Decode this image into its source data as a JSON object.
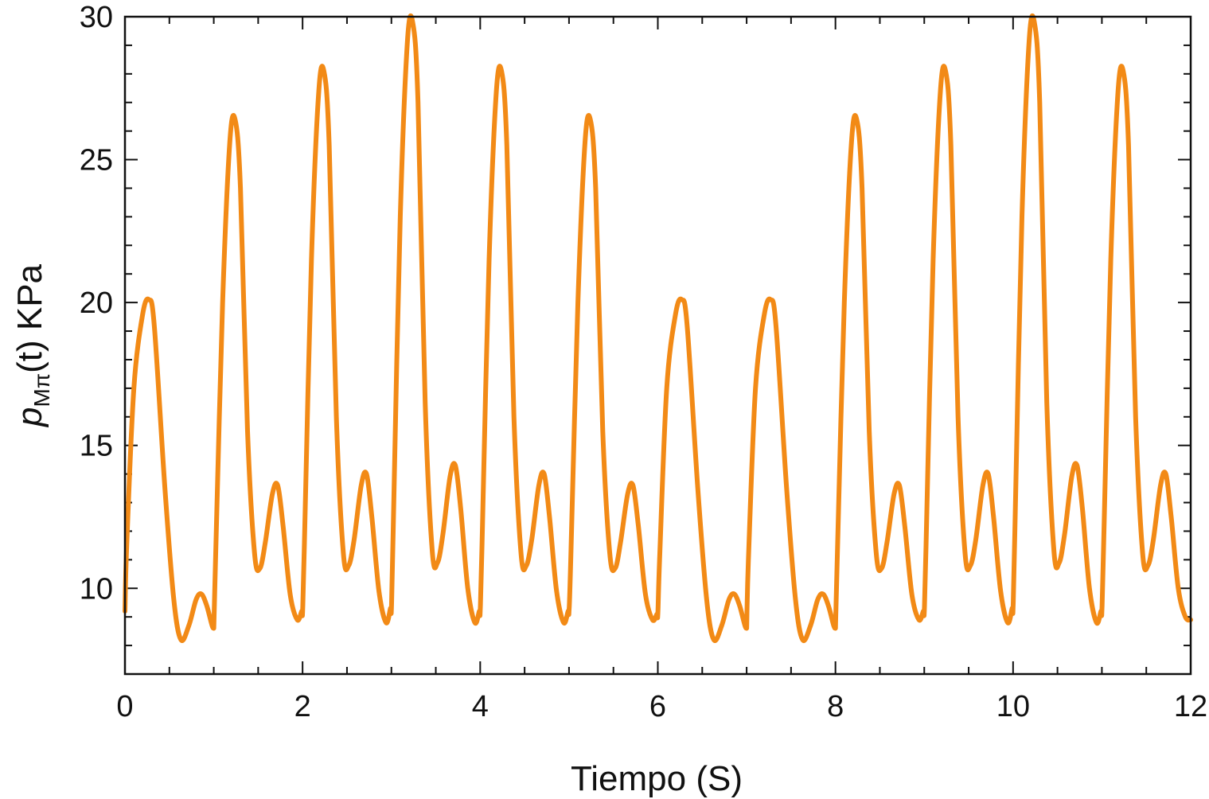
{
  "chart_data": {
    "type": "line",
    "title": "",
    "xlabel": "Tiempo  (S)",
    "ylabel": {
      "main": "p",
      "subscript": "Mπ",
      "rest": "(t)  KPa"
    },
    "xlim": [
      0,
      12
    ],
    "ylim": [
      7,
      30
    ],
    "x_ticks": [
      0,
      2,
      4,
      6,
      8,
      10,
      12
    ],
    "x_tick_labels": [
      "0",
      "2",
      "4",
      "6",
      "8",
      "10",
      "12"
    ],
    "y_ticks": [
      10,
      15,
      20,
      25,
      30
    ],
    "y_tick_labels": [
      "10",
      "15",
      "20",
      "25",
      "30"
    ],
    "grid": false,
    "legend": "none",
    "series": [
      {
        "color": "#F28A16",
        "x": [
          0,
          0.02,
          0.1,
          0.2,
          0.27,
          0.33,
          0.45,
          0.55,
          0.63,
          0.72,
          0.8,
          0.86,
          0.92,
          0.98,
          1.0,
          1.0,
          1.02,
          1.1,
          1.18,
          1.24,
          1.3,
          1.38,
          1.46,
          1.52,
          1.58,
          1.66,
          1.72,
          1.78,
          1.86,
          1.94,
          1.99,
          2.0,
          2.02,
          2.1,
          2.18,
          2.24,
          2.3,
          2.38,
          2.46,
          2.52,
          2.58,
          2.66,
          2.72,
          2.78,
          2.86,
          2.94,
          2.99,
          3.0,
          3.02,
          3.1,
          3.18,
          3.24,
          3.3,
          3.38,
          3.46,
          3.52,
          3.58,
          3.66,
          3.72,
          3.78,
          3.86,
          3.94,
          3.99,
          4.0,
          4.02,
          4.1,
          4.18,
          4.24,
          4.3,
          4.38,
          4.46,
          4.52,
          4.58,
          4.66,
          4.72,
          4.78,
          4.86,
          4.94,
          4.99,
          5.0,
          5.02,
          5.1,
          5.18,
          5.24,
          5.3,
          5.38,
          5.46,
          5.52,
          5.58,
          5.66,
          5.72,
          5.78,
          5.86,
          5.94,
          5.99,
          6.0,
          6.02,
          6.1,
          6.2,
          6.27,
          6.33,
          6.45,
          6.55,
          6.63,
          6.72,
          6.8,
          6.86,
          6.92,
          6.98,
          7.0,
          7.0,
          7.02,
          7.1,
          7.2,
          7.27,
          7.33,
          7.45,
          7.55,
          7.63,
          7.72,
          7.8,
          7.86,
          7.92,
          7.98,
          8.0,
          8.0,
          8.02,
          8.1,
          8.18,
          8.24,
          8.3,
          8.38,
          8.46,
          8.52,
          8.58,
          8.66,
          8.72,
          8.78,
          8.86,
          8.94,
          8.99,
          9.0,
          9.02,
          9.1,
          9.18,
          9.24,
          9.3,
          9.38,
          9.46,
          9.52,
          9.58,
          9.66,
          9.72,
          9.78,
          9.86,
          9.94,
          9.99,
          10.0,
          10.02,
          10.1,
          10.18,
          10.24,
          10.3,
          10.38,
          10.46,
          10.52,
          10.58,
          10.66,
          10.72,
          10.78,
          10.86,
          10.94,
          10.99,
          11.0,
          11.02,
          11.1,
          11.18,
          11.24,
          11.3,
          11.38,
          11.46,
          11.52,
          11.58,
          11.66,
          11.72,
          11.78,
          11.86,
          11.94,
          12.0
        ],
        "y": [
          9.2,
          11.5,
          17.0,
          19.6,
          20.1,
          19.2,
          13.5,
          9.6,
          8.2,
          8.7,
          9.6,
          9.8,
          9.4,
          8.7,
          8.6,
          8.6,
          11.0,
          20.0,
          25.6,
          26.4,
          24.0,
          15.5,
          11.2,
          10.7,
          11.6,
          13.3,
          13.6,
          12.2,
          9.8,
          8.9,
          9.2,
          9.2,
          11.5,
          21.5,
          27.3,
          28.1,
          25.5,
          16.0,
          11.2,
          10.8,
          11.7,
          13.6,
          14.0,
          12.5,
          9.9,
          8.8,
          9.3,
          9.3,
          12.0,
          23.0,
          29.1,
          29.8,
          27.0,
          16.5,
          11.3,
          10.9,
          11.9,
          13.9,
          14.3,
          12.8,
          10.0,
          8.8,
          9.2,
          9.2,
          11.5,
          21.5,
          27.3,
          28.1,
          25.5,
          16.0,
          11.2,
          10.8,
          11.7,
          13.6,
          14.0,
          12.5,
          9.9,
          8.8,
          9.2,
          9.2,
          11.0,
          20.0,
          25.6,
          26.4,
          24.0,
          15.5,
          11.2,
          10.7,
          11.6,
          13.3,
          13.6,
          12.2,
          9.8,
          8.9,
          9.1,
          9.1,
          11.0,
          17.0,
          19.6,
          20.1,
          19.2,
          13.5,
          9.6,
          8.2,
          8.7,
          9.6,
          9.8,
          9.4,
          8.7,
          8.6,
          8.6,
          11.0,
          17.0,
          19.6,
          20.1,
          19.2,
          13.5,
          9.6,
          8.2,
          8.7,
          9.6,
          9.8,
          9.4,
          8.7,
          8.6,
          8.6,
          11.0,
          20.0,
          25.6,
          26.4,
          24.0,
          15.5,
          11.2,
          10.7,
          11.6,
          13.3,
          13.6,
          12.2,
          9.8,
          8.9,
          9.2,
          9.2,
          11.5,
          21.5,
          27.3,
          28.1,
          25.5,
          16.0,
          11.2,
          10.8,
          11.7,
          13.6,
          14.0,
          12.5,
          9.9,
          8.8,
          9.3,
          9.3,
          12.0,
          23.0,
          29.1,
          29.8,
          27.0,
          16.5,
          11.3,
          10.9,
          11.9,
          13.9,
          14.3,
          12.8,
          10.0,
          8.8,
          9.2,
          9.2,
          11.5,
          21.5,
          27.3,
          28.1,
          25.5,
          16.0,
          11.2,
          10.8,
          11.7,
          13.6,
          14.0,
          12.5,
          10.0,
          9.0,
          8.9
        ]
      }
    ]
  }
}
